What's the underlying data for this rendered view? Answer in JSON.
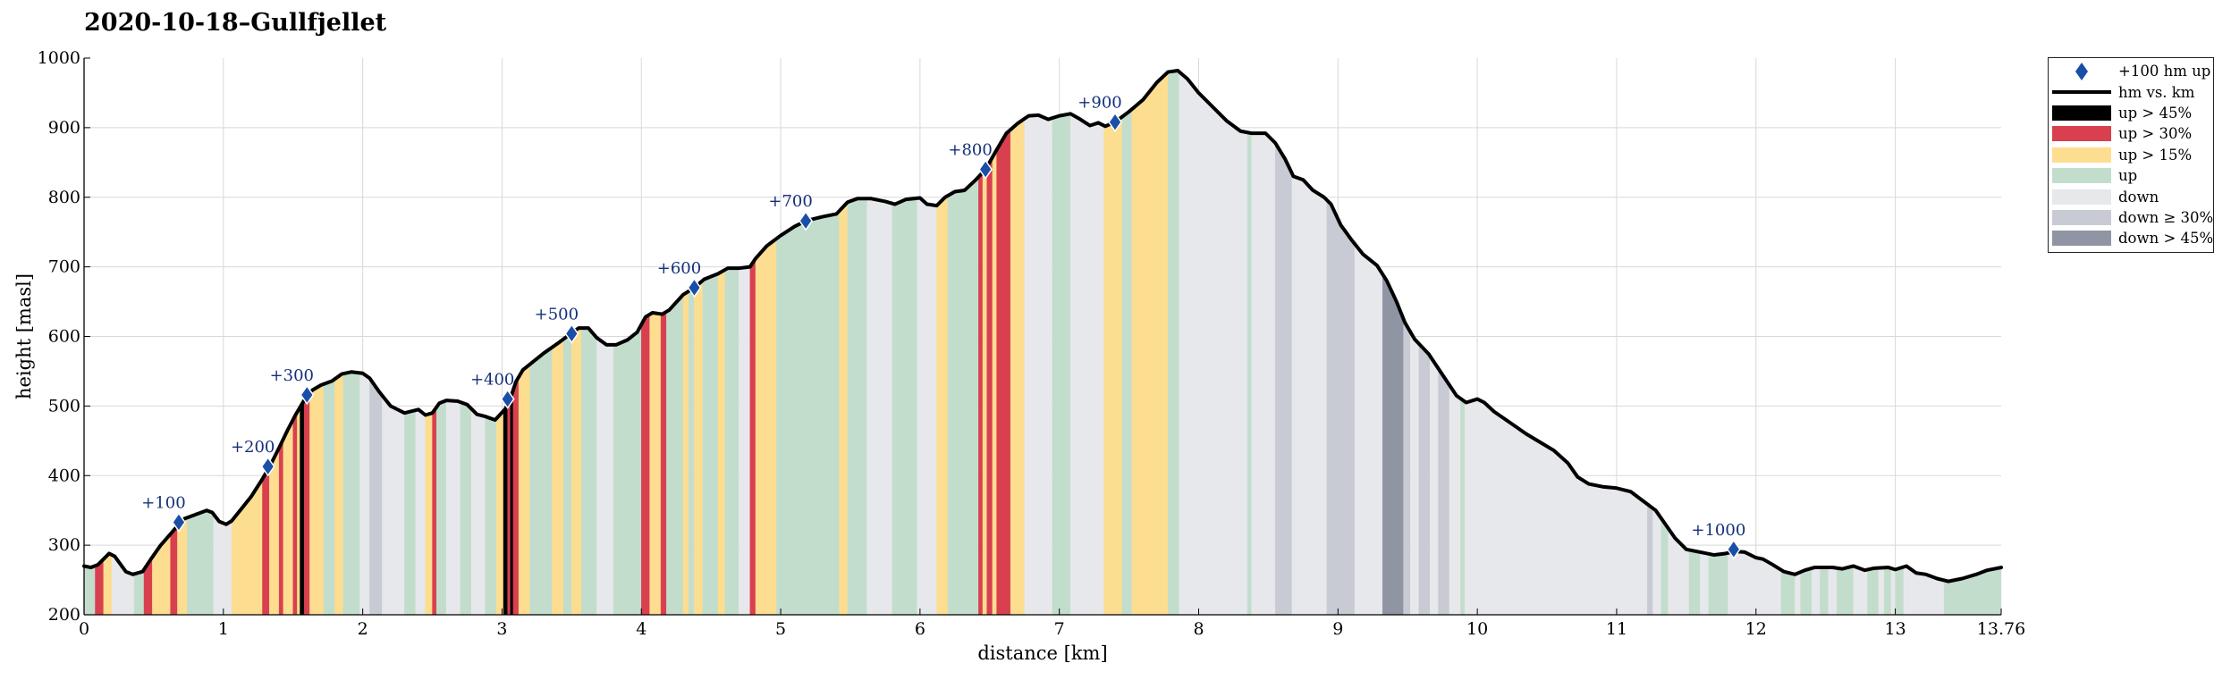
{
  "chart_data": {
    "type": "area",
    "title": "2020-10-18–Gullfjellet",
    "xlabel": "distance [km]",
    "ylabel": "height [masl]",
    "xlim": [
      0,
      13.76
    ],
    "ylim": [
      200,
      1000
    ],
    "grid": true,
    "legend_position": "outside-top-right",
    "x_ticks": [
      0,
      1,
      2,
      3,
      4,
      5,
      6,
      7,
      8,
      9,
      10,
      11,
      12,
      13,
      13.76
    ],
    "x_tick_labels": [
      "0",
      "1",
      "2",
      "3",
      "4",
      "5",
      "6",
      "7",
      "8",
      "9",
      "10",
      "11",
      "12",
      "13",
      "13.76"
    ],
    "y_ticks": [
      200,
      300,
      400,
      500,
      600,
      700,
      800,
      900,
      1000
    ],
    "y_tick_labels": [
      "200",
      "300",
      "400",
      "500",
      "600",
      "700",
      "800",
      "900",
      "1000"
    ],
    "colors": {
      "up_45": "#000000",
      "up_30": "#d9404f",
      "up_15": "#fddd8f",
      "up": "#c3ddcd",
      "down": "#e7e8ec",
      "down_30": "#c8cbd3",
      "down_45": "#8f95a3",
      "line": "#000000",
      "marker": "#1a4fa8",
      "grid": "#d8d8d8"
    },
    "profile": [
      [
        0,
        270
      ],
      [
        0.05,
        268
      ],
      [
        0.1,
        272
      ],
      [
        0.18,
        288
      ],
      [
        0.22,
        284
      ],
      [
        0.3,
        262
      ],
      [
        0.35,
        258
      ],
      [
        0.42,
        262
      ],
      [
        0.48,
        280
      ],
      [
        0.55,
        300
      ],
      [
        0.62,
        316
      ],
      [
        0.68,
        330
      ],
      [
        0.72,
        338
      ],
      [
        0.8,
        344
      ],
      [
        0.88,
        350
      ],
      [
        0.92,
        347
      ],
      [
        0.97,
        334
      ],
      [
        1.02,
        330
      ],
      [
        1.06,
        335
      ],
      [
        1.12,
        350
      ],
      [
        1.2,
        370
      ],
      [
        1.28,
        395
      ],
      [
        1.34,
        416
      ],
      [
        1.4,
        440
      ],
      [
        1.46,
        465
      ],
      [
        1.52,
        488
      ],
      [
        1.57,
        505
      ],
      [
        1.6,
        515
      ],
      [
        1.64,
        523
      ],
      [
        1.7,
        530
      ],
      [
        1.78,
        536
      ],
      [
        1.85,
        546
      ],
      [
        1.92,
        549
      ],
      [
        2.0,
        547
      ],
      [
        2.05,
        540
      ],
      [
        2.12,
        520
      ],
      [
        2.2,
        500
      ],
      [
        2.3,
        490
      ],
      [
        2.4,
        495
      ],
      [
        2.45,
        487
      ],
      [
        2.5,
        490
      ],
      [
        2.55,
        504
      ],
      [
        2.6,
        508
      ],
      [
        2.68,
        507
      ],
      [
        2.75,
        502
      ],
      [
        2.82,
        488
      ],
      [
        2.88,
        485
      ],
      [
        2.95,
        480
      ],
      [
        3.02,
        495
      ],
      [
        3.05,
        505
      ],
      [
        3.1,
        535
      ],
      [
        3.15,
        552
      ],
      [
        3.2,
        560
      ],
      [
        3.3,
        576
      ],
      [
        3.4,
        590
      ],
      [
        3.5,
        605
      ],
      [
        3.55,
        612
      ],
      [
        3.62,
        612
      ],
      [
        3.68,
        598
      ],
      [
        3.75,
        588
      ],
      [
        3.82,
        588
      ],
      [
        3.9,
        595
      ],
      [
        3.97,
        606
      ],
      [
        4.03,
        628
      ],
      [
        4.08,
        634
      ],
      [
        4.15,
        632
      ],
      [
        4.2,
        638
      ],
      [
        4.3,
        660
      ],
      [
        4.38,
        670
      ],
      [
        4.45,
        682
      ],
      [
        4.55,
        690
      ],
      [
        4.62,
        698
      ],
      [
        4.7,
        698
      ],
      [
        4.78,
        700
      ],
      [
        4.82,
        712
      ],
      [
        4.9,
        730
      ],
      [
        5.0,
        745
      ],
      [
        5.1,
        758
      ],
      [
        5.18,
        766
      ],
      [
        5.3,
        772
      ],
      [
        5.4,
        776
      ],
      [
        5.48,
        793
      ],
      [
        5.55,
        798
      ],
      [
        5.65,
        798
      ],
      [
        5.75,
        794
      ],
      [
        5.82,
        790
      ],
      [
        5.9,
        797
      ],
      [
        6.0,
        799
      ],
      [
        6.05,
        790
      ],
      [
        6.12,
        788
      ],
      [
        6.18,
        800
      ],
      [
        6.25,
        808
      ],
      [
        6.32,
        810
      ],
      [
        6.4,
        825
      ],
      [
        6.47,
        840
      ],
      [
        6.55,
        868
      ],
      [
        6.62,
        892
      ],
      [
        6.7,
        906
      ],
      [
        6.78,
        917
      ],
      [
        6.85,
        918
      ],
      [
        6.92,
        912
      ],
      [
        7.0,
        917
      ],
      [
        7.08,
        920
      ],
      [
        7.15,
        912
      ],
      [
        7.22,
        903
      ],
      [
        7.28,
        907
      ],
      [
        7.33,
        902
      ],
      [
        7.4,
        908
      ],
      [
        7.5,
        923
      ],
      [
        7.6,
        940
      ],
      [
        7.7,
        965
      ],
      [
        7.78,
        980
      ],
      [
        7.85,
        982
      ],
      [
        7.92,
        970
      ],
      [
        8.0,
        950
      ],
      [
        8.1,
        930
      ],
      [
        8.2,
        910
      ],
      [
        8.3,
        895
      ],
      [
        8.38,
        892
      ],
      [
        8.48,
        892
      ],
      [
        8.55,
        878
      ],
      [
        8.62,
        855
      ],
      [
        8.68,
        830
      ],
      [
        8.75,
        825
      ],
      [
        8.82,
        810
      ],
      [
        8.9,
        800
      ],
      [
        8.95,
        790
      ],
      [
        9.02,
        760
      ],
      [
        9.1,
        738
      ],
      [
        9.18,
        718
      ],
      [
        9.28,
        702
      ],
      [
        9.35,
        680
      ],
      [
        9.42,
        650
      ],
      [
        9.48,
        620
      ],
      [
        9.55,
        596
      ],
      [
        9.65,
        575
      ],
      [
        9.75,
        545
      ],
      [
        9.85,
        515
      ],
      [
        9.92,
        505
      ],
      [
        10.0,
        510
      ],
      [
        10.05,
        505
      ],
      [
        10.12,
        492
      ],
      [
        10.25,
        474
      ],
      [
        10.35,
        460
      ],
      [
        10.45,
        448
      ],
      [
        10.55,
        436
      ],
      [
        10.65,
        418
      ],
      [
        10.72,
        398
      ],
      [
        10.8,
        388
      ],
      [
        10.9,
        384
      ],
      [
        11.0,
        382
      ],
      [
        11.1,
        377
      ],
      [
        11.18,
        365
      ],
      [
        11.28,
        350
      ],
      [
        11.35,
        330
      ],
      [
        11.42,
        310
      ],
      [
        11.5,
        294
      ],
      [
        11.6,
        290
      ],
      [
        11.7,
        286
      ],
      [
        11.78,
        288
      ],
      [
        11.85,
        291
      ],
      [
        11.92,
        290
      ],
      [
        12.0,
        282
      ],
      [
        12.05,
        280
      ],
      [
        12.12,
        272
      ],
      [
        12.2,
        262
      ],
      [
        12.28,
        258
      ],
      [
        12.35,
        264
      ],
      [
        12.42,
        268
      ],
      [
        12.55,
        268
      ],
      [
        12.62,
        266
      ],
      [
        12.7,
        270
      ],
      [
        12.78,
        264
      ],
      [
        12.85,
        267
      ],
      [
        12.95,
        268
      ],
      [
        13.0,
        265
      ],
      [
        13.08,
        270
      ],
      [
        13.15,
        260
      ],
      [
        13.22,
        258
      ],
      [
        13.3,
        252
      ],
      [
        13.38,
        248
      ],
      [
        13.48,
        252
      ],
      [
        13.58,
        258
      ],
      [
        13.66,
        264
      ],
      [
        13.76,
        268
      ]
    ],
    "segments": [
      [
        0.0,
        0.08,
        "up"
      ],
      [
        0.08,
        0.14,
        "up_30"
      ],
      [
        0.14,
        0.2,
        "up_15"
      ],
      [
        0.2,
        0.36,
        "down"
      ],
      [
        0.36,
        0.43,
        "up"
      ],
      [
        0.43,
        0.49,
        "up_30"
      ],
      [
        0.49,
        0.62,
        "up_15"
      ],
      [
        0.62,
        0.67,
        "up_30"
      ],
      [
        0.67,
        0.74,
        "up_15"
      ],
      [
        0.74,
        0.93,
        "up"
      ],
      [
        0.93,
        1.06,
        "down"
      ],
      [
        1.06,
        1.28,
        "up_15"
      ],
      [
        1.28,
        1.33,
        "up_30"
      ],
      [
        1.33,
        1.4,
        "up_15"
      ],
      [
        1.4,
        1.43,
        "up_30"
      ],
      [
        1.43,
        1.5,
        "up_15"
      ],
      [
        1.5,
        1.53,
        "up_30"
      ],
      [
        1.53,
        1.55,
        "up_15"
      ],
      [
        1.55,
        1.58,
        "up_45"
      ],
      [
        1.58,
        1.62,
        "up_30"
      ],
      [
        1.62,
        1.72,
        "up_15"
      ],
      [
        1.72,
        1.8,
        "up"
      ],
      [
        1.8,
        1.86,
        "up_15"
      ],
      [
        1.86,
        1.98,
        "up"
      ],
      [
        1.98,
        2.05,
        "down"
      ],
      [
        2.05,
        2.14,
        "down_30"
      ],
      [
        2.14,
        2.3,
        "down"
      ],
      [
        2.3,
        2.38,
        "up"
      ],
      [
        2.38,
        2.45,
        "down"
      ],
      [
        2.45,
        2.5,
        "up_15"
      ],
      [
        2.5,
        2.53,
        "up_30"
      ],
      [
        2.53,
        2.6,
        "up"
      ],
      [
        2.6,
        2.7,
        "down"
      ],
      [
        2.7,
        2.78,
        "up"
      ],
      [
        2.78,
        2.88,
        "down"
      ],
      [
        2.88,
        2.96,
        "up"
      ],
      [
        2.96,
        3.01,
        "up_15"
      ],
      [
        3.01,
        3.04,
        "up_45"
      ],
      [
        3.04,
        3.06,
        "up_30"
      ],
      [
        3.06,
        3.08,
        "up_45"
      ],
      [
        3.08,
        3.12,
        "up_30"
      ],
      [
        3.12,
        3.2,
        "up_15"
      ],
      [
        3.2,
        3.36,
        "up"
      ],
      [
        3.36,
        3.44,
        "up_15"
      ],
      [
        3.44,
        3.5,
        "up"
      ],
      [
        3.5,
        3.57,
        "up_15"
      ],
      [
        3.57,
        3.68,
        "up"
      ],
      [
        3.68,
        3.8,
        "down"
      ],
      [
        3.8,
        4.0,
        "up"
      ],
      [
        4.0,
        4.06,
        "up_30"
      ],
      [
        4.06,
        4.14,
        "up_15"
      ],
      [
        4.14,
        4.18,
        "up_30"
      ],
      [
        4.18,
        4.3,
        "up"
      ],
      [
        4.3,
        4.34,
        "up_15"
      ],
      [
        4.34,
        4.38,
        "up"
      ],
      [
        4.38,
        4.44,
        "up_15"
      ],
      [
        4.44,
        4.55,
        "up"
      ],
      [
        4.55,
        4.6,
        "up_15"
      ],
      [
        4.6,
        4.7,
        "up"
      ],
      [
        4.7,
        4.78,
        "down"
      ],
      [
        4.78,
        4.82,
        "up_30"
      ],
      [
        4.82,
        4.97,
        "up_15"
      ],
      [
        4.97,
        5.42,
        "up"
      ],
      [
        5.42,
        5.48,
        "up_15"
      ],
      [
        5.48,
        5.62,
        "up"
      ],
      [
        5.62,
        5.8,
        "down"
      ],
      [
        5.8,
        5.98,
        "up"
      ],
      [
        5.98,
        6.12,
        "down"
      ],
      [
        6.12,
        6.2,
        "up_15"
      ],
      [
        6.2,
        6.3,
        "up"
      ],
      [
        6.3,
        6.42,
        "up"
      ],
      [
        6.42,
        6.45,
        "up_30"
      ],
      [
        6.45,
        6.48,
        "up_15"
      ],
      [
        6.48,
        6.52,
        "up_30"
      ],
      [
        6.52,
        6.55,
        "up_15"
      ],
      [
        6.55,
        6.65,
        "up_30"
      ],
      [
        6.65,
        6.75,
        "up_15"
      ],
      [
        6.75,
        6.95,
        "down"
      ],
      [
        6.95,
        7.08,
        "up"
      ],
      [
        7.08,
        7.32,
        "down"
      ],
      [
        7.32,
        7.45,
        "up_15"
      ],
      [
        7.45,
        7.52,
        "up"
      ],
      [
        7.52,
        7.78,
        "up_15"
      ],
      [
        7.78,
        7.86,
        "up"
      ],
      [
        7.86,
        8.35,
        "down"
      ],
      [
        8.35,
        8.38,
        "up"
      ],
      [
        8.38,
        8.55,
        "down"
      ],
      [
        8.55,
        8.67,
        "down_30"
      ],
      [
        8.67,
        8.92,
        "down"
      ],
      [
        8.92,
        9.12,
        "down_30"
      ],
      [
        9.12,
        9.32,
        "down"
      ],
      [
        9.32,
        9.47,
        "down_45"
      ],
      [
        9.47,
        9.52,
        "down_30"
      ],
      [
        9.52,
        9.58,
        "down"
      ],
      [
        9.58,
        9.66,
        "down_30"
      ],
      [
        9.66,
        9.72,
        "down"
      ],
      [
        9.72,
        9.8,
        "down_30"
      ],
      [
        9.8,
        9.88,
        "down"
      ],
      [
        9.88,
        9.91,
        "up"
      ],
      [
        9.91,
        11.22,
        "down"
      ],
      [
        11.22,
        11.26,
        "down_30"
      ],
      [
        11.26,
        11.32,
        "down"
      ],
      [
        11.32,
        11.37,
        "up"
      ],
      [
        11.37,
        11.52,
        "down"
      ],
      [
        11.52,
        11.6,
        "up"
      ],
      [
        11.6,
        11.66,
        "down"
      ],
      [
        11.66,
        11.72,
        "up"
      ],
      [
        11.72,
        11.8,
        "up"
      ],
      [
        11.8,
        12.18,
        "down"
      ],
      [
        12.18,
        12.28,
        "up"
      ],
      [
        12.28,
        12.32,
        "down"
      ],
      [
        12.32,
        12.4,
        "up"
      ],
      [
        12.4,
        12.46,
        "down"
      ],
      [
        12.46,
        12.52,
        "up"
      ],
      [
        12.52,
        12.58,
        "down"
      ],
      [
        12.58,
        12.7,
        "up"
      ],
      [
        12.7,
        12.8,
        "down"
      ],
      [
        12.8,
        12.88,
        "up"
      ],
      [
        12.88,
        12.92,
        "down"
      ],
      [
        12.92,
        12.97,
        "up"
      ],
      [
        12.97,
        13.0,
        "down"
      ],
      [
        13.0,
        13.06,
        "up"
      ],
      [
        13.06,
        13.35,
        "down"
      ],
      [
        13.35,
        13.76,
        "up"
      ]
    ],
    "markers": [
      {
        "x": 0.68,
        "y": 333,
        "label": "+100"
      },
      {
        "x": 1.32,
        "y": 413,
        "label": "+200"
      },
      {
        "x": 1.6,
        "y": 516,
        "label": "+300"
      },
      {
        "x": 3.04,
        "y": 510,
        "label": "+400"
      },
      {
        "x": 3.5,
        "y": 604,
        "label": "+500"
      },
      {
        "x": 4.38,
        "y": 670,
        "label": "+600"
      },
      {
        "x": 5.18,
        "y": 766,
        "label": "+700"
      },
      {
        "x": 6.47,
        "y": 840,
        "label": "+800"
      },
      {
        "x": 7.4,
        "y": 908,
        "label": "+900"
      },
      {
        "x": 11.84,
        "y": 294,
        "label": "+1000"
      }
    ],
    "legend": [
      {
        "key": "marker",
        "label": "+100 hm up"
      },
      {
        "key": "line",
        "label": "hm vs. km"
      },
      {
        "key": "up_45",
        "label": "up > 45%"
      },
      {
        "key": "up_30",
        "label": "up > 30%"
      },
      {
        "key": "up_15",
        "label": "up > 15%"
      },
      {
        "key": "up",
        "label": "up"
      },
      {
        "key": "down",
        "label": "down"
      },
      {
        "key": "down_30",
        "label": "down ≥ 30%"
      },
      {
        "key": "down_45",
        "label": "down > 45%"
      }
    ]
  }
}
